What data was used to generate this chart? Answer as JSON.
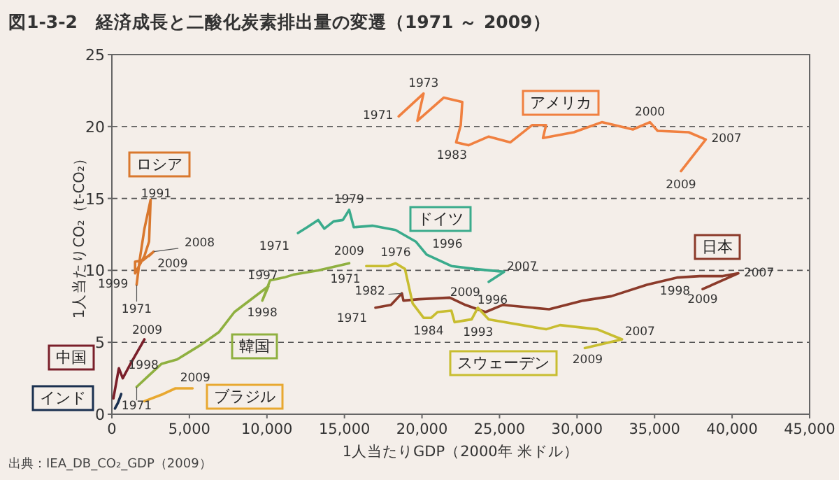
{
  "chart_data": {
    "type": "line",
    "title": "図1-3-2　経済成長と二酸化炭素排出量の変遷（1971 ～ 2009）",
    "xlabel": "1人当たりGDP（2000年 米ドル）",
    "ylabel": "1人当たりCO₂（t-CO₂）",
    "xlim": [
      0,
      45000
    ],
    "ylim": [
      0,
      25
    ],
    "xticks": [
      0,
      {
        "value": 5000,
        "label": "5,000"
      },
      {
        "value": 10000,
        "label": "10,000"
      },
      {
        "value": 15000,
        "label": "15,000"
      },
      {
        "value": 20000,
        "label": "20,000"
      },
      {
        "value": 25000,
        "label": "25,000"
      },
      {
        "value": 30000,
        "label": "30,000"
      },
      {
        "value": 35000,
        "label": "35,000"
      },
      {
        "value": 40000,
        "label": "40,000"
      },
      {
        "value": 45000,
        "label": "45,000"
      }
    ],
    "yticks": [
      0,
      5,
      10,
      15,
      20,
      25
    ],
    "grid": "y",
    "marker": "none",
    "line_style": "solid",
    "series": [
      {
        "name": "アメリカ",
        "color": "#f08040",
        "x": [
          18500,
          20100,
          19700,
          21400,
          22600,
          22500,
          22200,
          23000,
          24300,
          25700,
          27100,
          28000,
          27800,
          29800,
          31600,
          33600,
          34700,
          35200,
          37200,
          38300,
          36700
        ],
        "values": [
          20.7,
          22.3,
          20.4,
          22.0,
          21.7,
          20.1,
          18.9,
          18.7,
          19.3,
          18.9,
          20.1,
          20.1,
          19.2,
          19.6,
          20.3,
          19.8,
          20.3,
          19.7,
          19.6,
          19.1,
          16.9
        ]
      },
      {
        "name": "ロシア",
        "color": "#d9782e",
        "x": [
          1600,
          1800,
          2100,
          2500,
          2400,
          2100,
          1500,
          1500,
          2000,
          2700,
          2400
        ],
        "values": [
          9.0,
          10.8,
          12.9,
          14.9,
          12.0,
          11.0,
          9.8,
          10.6,
          10.7,
          11.3,
          11.0
        ]
      },
      {
        "name": "ドイツ",
        "color": "#3aab8c",
        "x": [
          12000,
          12600,
          13300,
          13700,
          14300,
          14900,
          15300,
          15600,
          16800,
          18300,
          19600,
          20300,
          21900,
          23400,
          24300,
          25300,
          24300
        ],
        "values": [
          12.6,
          13.0,
          13.5,
          12.9,
          13.4,
          13.5,
          14.2,
          13.0,
          13.1,
          12.8,
          12.0,
          11.1,
          10.3,
          10.1,
          10.0,
          9.9,
          9.2
        ]
      },
      {
        "name": "日本",
        "color": "#8b3a2a",
        "x": [
          17000,
          18000,
          18700,
          18800,
          19800,
          21800,
          22800,
          24100,
          25200,
          28200,
          30400,
          32200,
          34500,
          36500,
          37900,
          39400,
          40400,
          38100
        ],
        "values": [
          7.4,
          7.6,
          8.4,
          7.9,
          8.0,
          8.1,
          7.6,
          7.1,
          7.6,
          7.3,
          7.9,
          8.2,
          9.0,
          9.5,
          9.6,
          9.6,
          9.8,
          8.7
        ]
      },
      {
        "name": "スウェーデン",
        "color": "#c8bd30",
        "x": [
          16400,
          17800,
          18300,
          18900,
          19400,
          20100,
          20600,
          21000,
          21900,
          22100,
          23200,
          23600,
          24300,
          28000,
          28900,
          31300,
          32900,
          30500
        ],
        "values": [
          10.3,
          10.3,
          10.5,
          10.1,
          7.7,
          6.7,
          6.7,
          7.1,
          7.2,
          6.4,
          6.6,
          7.4,
          6.6,
          5.9,
          6.2,
          5.9,
          5.2,
          4.6
        ]
      },
      {
        "name": "韓国",
        "color": "#8fb040",
        "x": [
          1600,
          2400,
          3200,
          4200,
          5700,
          6900,
          7900,
          10100,
          9700,
          10200,
          11100,
          11700,
          13300,
          15300
        ],
        "values": [
          1.9,
          2.7,
          3.5,
          3.8,
          4.8,
          5.7,
          7.1,
          8.9,
          7.9,
          9.3,
          9.5,
          9.7,
          10.0,
          10.5
        ]
      },
      {
        "name": "中国",
        "color": "#7a1f2a",
        "x": [
          100,
          450,
          700,
          1200,
          2100
        ],
        "values": [
          1.1,
          3.2,
          2.5,
          3.5,
          5.2
        ]
      },
      {
        "name": "インド",
        "color": "#1a3050",
        "x": [
          200,
          400,
          600
        ],
        "values": [
          0.4,
          0.8,
          1.4
        ]
      },
      {
        "name": "ブラジル",
        "color": "#e8a830",
        "x": [
          2100,
          3300,
          4100,
          5200
        ],
        "values": [
          0.9,
          1.4,
          1.8,
          1.8
        ]
      }
    ],
    "annotations": [
      {
        "text": "1971",
        "x": 18500,
        "y": 20.7
      },
      {
        "text": "1973",
        "x": 20100,
        "y": 22.3
      },
      {
        "text": "1983",
        "x": 22200,
        "y": 18.9
      },
      {
        "text": "2000",
        "x": 34700,
        "y": 20.3
      },
      {
        "text": "2007",
        "x": 38300,
        "y": 19.1
      },
      {
        "text": "2009",
        "x": 36700,
        "y": 16.9
      },
      {
        "text": "1991",
        "x": 2500,
        "y": 14.9
      },
      {
        "text": "2008",
        "x": 2700,
        "y": 11.3
      },
      {
        "text": "2009",
        "x": 2400,
        "y": 11.0
      },
      {
        "text": "1999",
        "x": 1500,
        "y": 9.8
      },
      {
        "text": "1971",
        "x": 1600,
        "y": 9.0
      },
      {
        "text": "1971",
        "x": 12000,
        "y": 12.6
      },
      {
        "text": "1979",
        "x": 15300,
        "y": 14.2
      },
      {
        "text": "1996",
        "x": 20300,
        "y": 11.1
      },
      {
        "text": "2007",
        "x": 25300,
        "y": 9.9
      },
      {
        "text": "2009",
        "x": 24300,
        "y": 9.2
      },
      {
        "text": "1997",
        "x": 10100,
        "y": 8.9
      },
      {
        "text": "1998",
        "x": 9700,
        "y": 7.9
      },
      {
        "text": "2009",
        "x": 15300,
        "y": 10.5
      },
      {
        "text": "1971",
        "x": 16400,
        "y": 10.3
      },
      {
        "text": "1976",
        "x": 18300,
        "y": 10.5
      },
      {
        "text": "1984",
        "x": 20600,
        "y": 6.7
      },
      {
        "text": "1993",
        "x": 22100,
        "y": 6.4
      },
      {
        "text": "2007",
        "x": 32900,
        "y": 5.2
      },
      {
        "text": "2009",
        "x": 30500,
        "y": 4.6
      },
      {
        "text": "1971",
        "x": 17000,
        "y": 7.4
      },
      {
        "text": "1982",
        "x": 18700,
        "y": 8.4
      },
      {
        "text": "1996",
        "x": 24100,
        "y": 7.1
      },
      {
        "text": "1998",
        "x": 36500,
        "y": 9.5
      },
      {
        "text": "2007",
        "x": 40400,
        "y": 9.8
      },
      {
        "text": "2009",
        "x": 38100,
        "y": 8.7
      },
      {
        "text": "1998",
        "x": 700,
        "y": 2.5
      },
      {
        "text": "2009",
        "x": 2100,
        "y": 5.2
      },
      {
        "text": "2009",
        "x": 5200,
        "y": 1.8
      },
      {
        "text": "1971",
        "x": 1600,
        "y": 1.9
      },
      "出典：IEA_DB_CO₂_GDP（2009）"
    ]
  }
}
